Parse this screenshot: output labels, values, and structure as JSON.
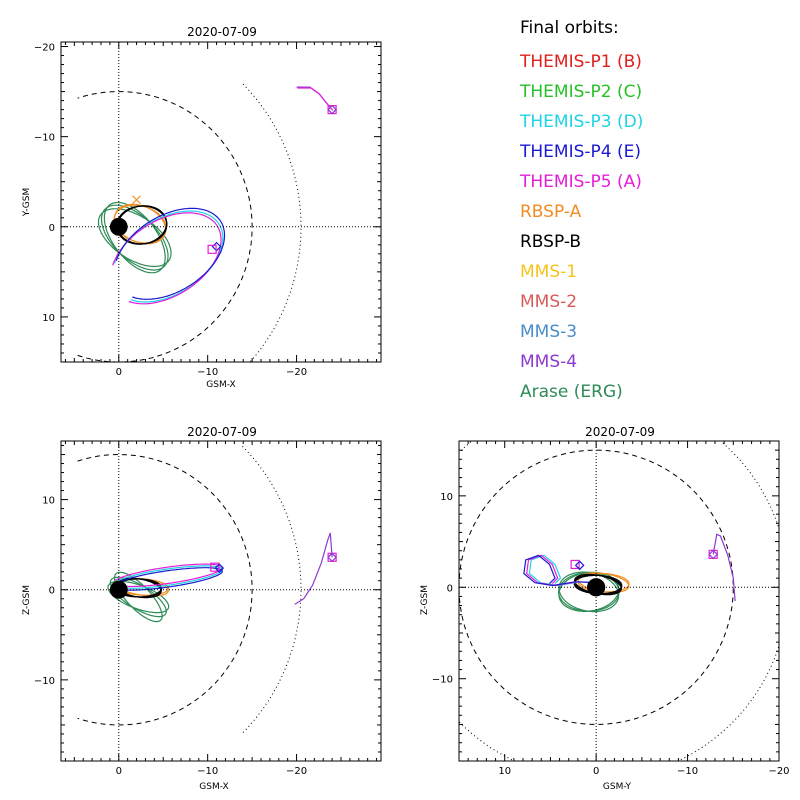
{
  "legend": {
    "title": "Final orbits:",
    "items": [
      {
        "label": "THEMIS-P1 (B)",
        "color": "#e0201e"
      },
      {
        "label": "THEMIS-P2 (C)",
        "color": "#27c127"
      },
      {
        "label": "THEMIS-P3 (D)",
        "color": "#1ed3e4"
      },
      {
        "label": "THEMIS-P4 (E)",
        "color": "#1a1ad0"
      },
      {
        "label": "THEMIS-P5 (A)",
        "color": "#e41ed8"
      },
      {
        "label": "RBSP-A",
        "color": "#f08c23"
      },
      {
        "label": "RBSP-B",
        "color": "#000000"
      },
      {
        "label": "MMS-1",
        "color": "#f5c41c"
      },
      {
        "label": "MMS-2",
        "color": "#d95a5a"
      },
      {
        "label": "MMS-3",
        "color": "#4a8cc8"
      },
      {
        "label": "MMS-4",
        "color": "#8c3ad0"
      },
      {
        "label": "Arase (ERG)",
        "color": "#2e8b57"
      }
    ]
  },
  "chart_data": [
    {
      "type": "line",
      "title": "2020-07-09",
      "xlabel": "GSM-X",
      "ylabel": "Y-GSM",
      "xlim": [
        6.5,
        -29.5
      ],
      "ylim": [
        15,
        -20.5
      ],
      "xticks": [
        0,
        -10,
        -20
      ],
      "yticks": [
        -20,
        -10,
        0,
        10
      ],
      "grid": "dotted zero lines",
      "marker_positions": [
        {
          "series": "THEMIS-P5 (A)",
          "x": -24,
          "y": -13,
          "marker": "square",
          "color": "#e41ed8"
        },
        {
          "series": "MMS-4",
          "x": -24,
          "y": -13,
          "marker": "diamond",
          "color": "#8c3ad0"
        },
        {
          "series": "THEMIS-P4 (E)",
          "x": -11,
          "y": 2.2,
          "marker": "diamond",
          "color": "#1a1ad0"
        },
        {
          "series": "THEMIS-P5 (A)",
          "x": -10.5,
          "y": 2.5,
          "marker": "square",
          "color": "#e41ed8"
        },
        {
          "series": "RBSP-A",
          "x": -2,
          "y": -3,
          "marker": "x",
          "color": "#f08c23"
        }
      ]
    },
    {
      "type": "line",
      "title": "2020-07-09",
      "xlabel": "GSM-X",
      "ylabel": "Z-GSM",
      "xlim": [
        6.5,
        -29.5
      ],
      "ylim": [
        -19,
        16.5
      ],
      "xticks": [
        0,
        -10,
        -20
      ],
      "yticks": [
        -10,
        0,
        10
      ],
      "grid": "dotted zero lines"
    },
    {
      "type": "line",
      "title": "2020-07-09",
      "xlabel": "GSM-Y",
      "ylabel": "Z-GSM",
      "xlim": [
        15,
        -20
      ],
      "ylim": [
        -19,
        16
      ],
      "xticks": [
        10,
        0,
        -10,
        -20
      ],
      "yticks": [
        -10,
        0,
        10
      ],
      "grid": "dotted zero lines"
    }
  ]
}
